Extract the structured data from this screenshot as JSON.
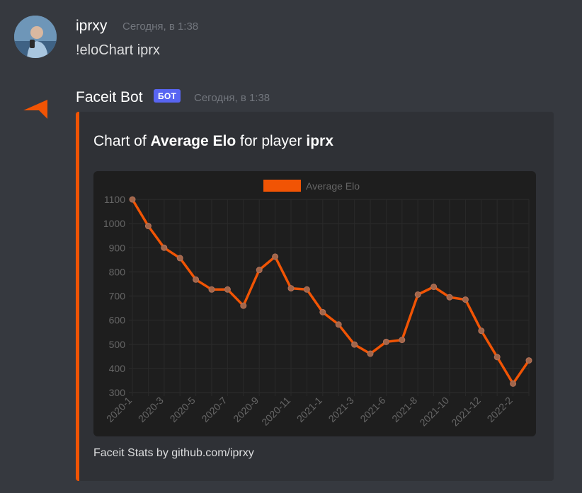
{
  "messages": [
    {
      "author": "iprxy",
      "timestamp": "Сегодня, в 1:38",
      "text": "!eloChart iprx"
    },
    {
      "author": "Faceit Bot",
      "badge": "БОТ",
      "timestamp": "Сегодня, в 1:38",
      "embed": {
        "title_parts": [
          "Chart of ",
          "Average Elo",
          " for player ",
          "iprx"
        ],
        "footer": "Faceit Stats by github.com/iprxy",
        "accent_color": "#f15404"
      }
    }
  ],
  "chart_data": {
    "type": "line",
    "legend": [
      "Average Elo"
    ],
    "legend_position": "top",
    "grid": true,
    "ylim": [
      300,
      1100
    ],
    "yticks": [
      300,
      400,
      500,
      600,
      700,
      800,
      900,
      1000,
      1100
    ],
    "xtick_labels": [
      "2020-1",
      "2020-3",
      "2020-5",
      "2020-7",
      "2020-9",
      "2020-11",
      "2021-1",
      "2021-3",
      "2021-6",
      "2021-8",
      "2021-10",
      "2021-12",
      "2022-2"
    ],
    "xtick_indices": [
      0,
      2,
      4,
      6,
      8,
      10,
      12,
      14,
      16,
      18,
      20,
      22,
      24
    ],
    "series": [
      {
        "name": "Average Elo",
        "color": "#f15404",
        "values": [
          1100,
          990,
          900,
          857,
          768,
          727,
          727,
          660,
          808,
          863,
          732,
          727,
          633,
          582,
          499,
          461,
          510,
          518,
          706,
          738,
          695,
          685,
          556,
          447,
          337,
          433
        ]
      }
    ]
  }
}
